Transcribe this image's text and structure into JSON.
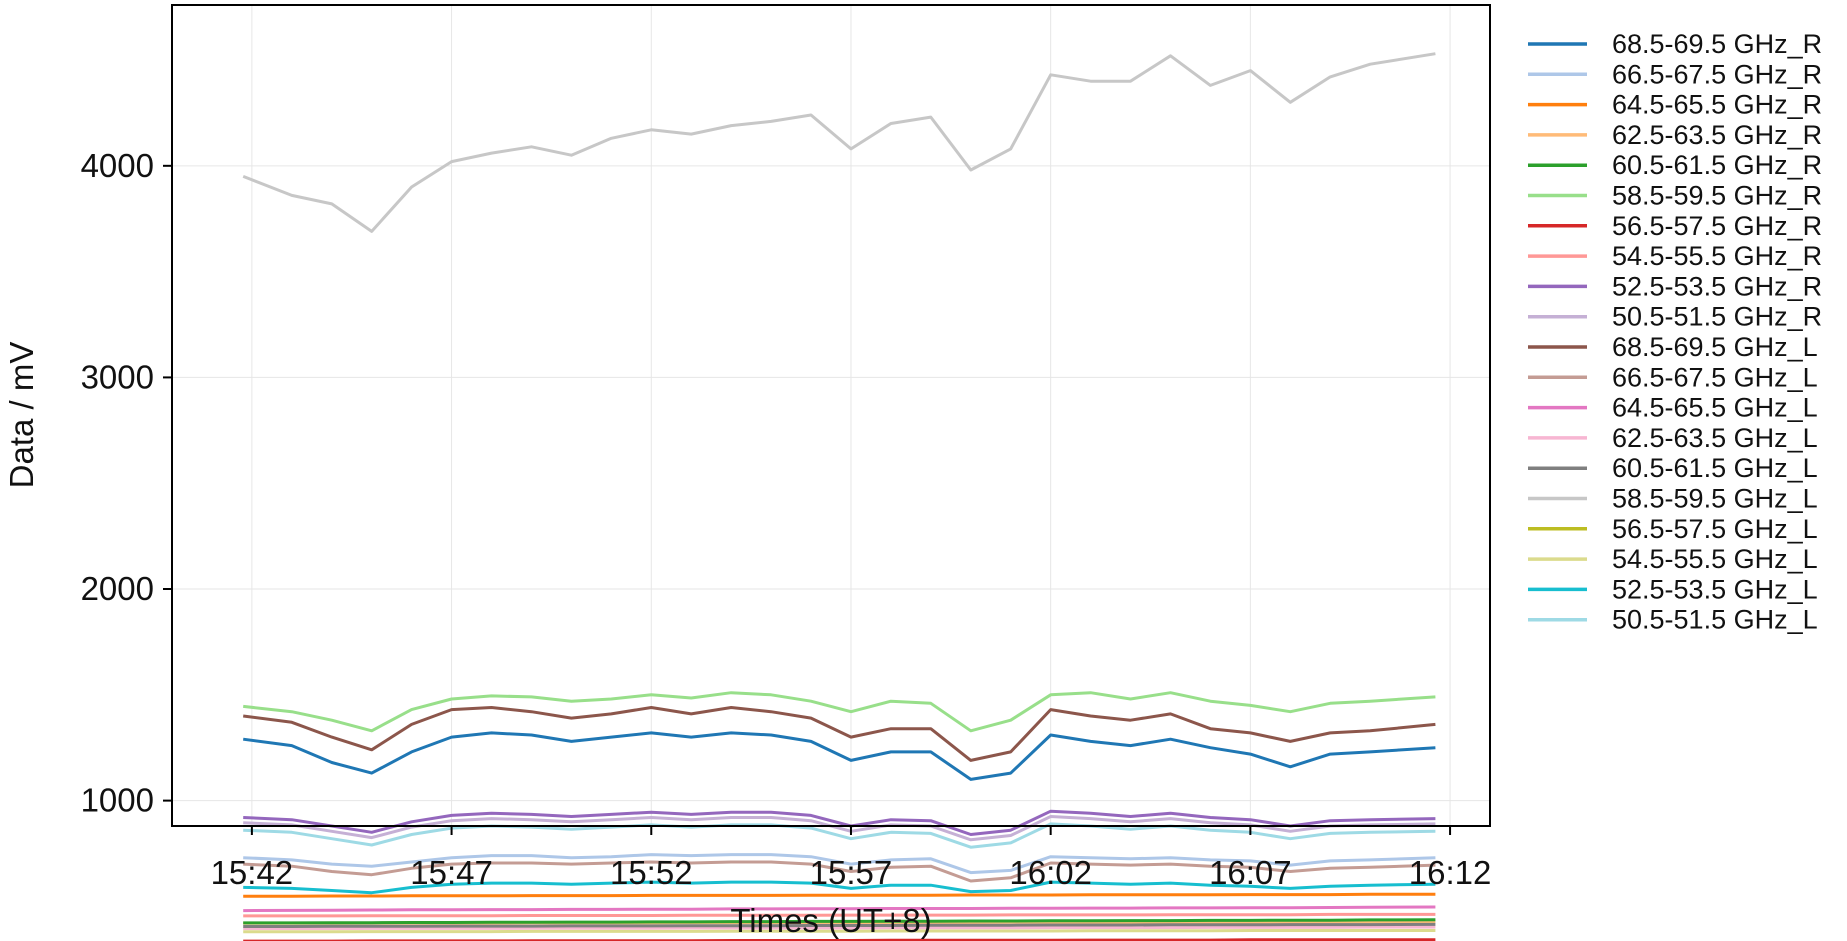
{
  "chart_data": {
    "type": "line",
    "title": "",
    "xlabel": "Times (UT+8)",
    "ylabel": "Data / mV",
    "grid": true,
    "legend_position": "right (outside plot)",
    "x_ticks": [
      "15:42",
      "15:47",
      "15:52",
      "15:57",
      "16:02",
      "16:07",
      "16:12"
    ],
    "y_ticks": [
      1000,
      2000,
      3000,
      4000
    ],
    "xlim": [
      "15:40",
      "16:13"
    ],
    "ylim": [
      880,
      4760
    ],
    "x": [
      "15:41:47",
      "15:43:00",
      "15:44:00",
      "15:45:00",
      "15:46:00",
      "15:47:00",
      "15:48:00",
      "15:49:00",
      "15:50:00",
      "15:51:00",
      "15:52:00",
      "15:53:00",
      "15:54:00",
      "15:55:00",
      "15:56:00",
      "15:57:00",
      "15:58:00",
      "15:59:00",
      "16:00:00",
      "16:01:00",
      "16:02:00",
      "16:03:00",
      "16:04:00",
      "16:05:00",
      "16:06:00",
      "16:07:00",
      "16:08:00",
      "16:09:00",
      "16:10:00",
      "16:11:38"
    ],
    "series": [
      {
        "name": "68.5-69.5 GHz_R",
        "color": "#1f77b4",
        "values": [
          1290,
          1260,
          1180,
          1130,
          1230,
          1300,
          1320,
          1310,
          1280,
          1300,
          1320,
          1300,
          1320,
          1310,
          1280,
          1190,
          1230,
          1230,
          1100,
          1130,
          1310,
          1280,
          1260,
          1290,
          1250,
          1220,
          1160,
          1220,
          1230,
          1250
        ]
      },
      {
        "name": "66.5-67.5 GHz_R",
        "color": "#aec7e8",
        "values": [
          730,
          720,
          700,
          690,
          710,
          730,
          740,
          740,
          730,
          735,
          745,
          740,
          745,
          745,
          735,
          700,
          720,
          725,
          660,
          670,
          735,
          730,
          725,
          730,
          720,
          715,
          695,
          715,
          720,
          730
        ]
      },
      {
        "name": "64.5-65.5 GHz_R",
        "color": "#ff7f0e",
        "values": [
          548,
          548,
          549,
          549,
          550,
          550,
          550,
          551,
          551,
          551,
          552,
          552,
          552,
          552,
          553,
          553,
          553,
          553,
          554,
          554,
          554,
          555,
          555,
          555,
          555,
          556,
          556,
          556,
          557,
          557
        ]
      },
      {
        "name": "62.5-63.5 GHz_R",
        "color": "#ffbb78",
        "values": [
          420,
          420,
          420,
          421,
          421,
          421,
          421,
          422,
          422,
          422,
          422,
          423,
          423,
          423,
          423,
          424,
          424,
          424,
          424,
          425,
          425,
          425,
          425,
          426,
          426,
          426,
          426,
          427,
          427,
          427
        ]
      },
      {
        "name": "60.5-61.5 GHz_R",
        "color": "#2ca02c",
        "values": [
          422,
          422,
          423,
          423,
          424,
          424,
          425,
          425,
          426,
          426,
          427,
          427,
          428,
          428,
          429,
          429,
          430,
          430,
          431,
          431,
          432,
          432,
          433,
          433,
          434,
          434,
          435,
          435,
          436,
          437
        ]
      },
      {
        "name": "58.5-59.5 GHz_R",
        "color": "#98df8a",
        "values": [
          1445,
          1420,
          1380,
          1330,
          1430,
          1480,
          1495,
          1490,
          1470,
          1480,
          1500,
          1485,
          1510,
          1500,
          1470,
          1420,
          1470,
          1460,
          1330,
          1380,
          1500,
          1510,
          1480,
          1510,
          1470,
          1450,
          1420,
          1460,
          1470,
          1490
        ]
      },
      {
        "name": "56.5-57.5 GHz_R",
        "color": "#d62728",
        "values": [
          336,
          336,
          336,
          337,
          337,
          337,
          337,
          338,
          338,
          338,
          338,
          338,
          339,
          339,
          339,
          339,
          340,
          340,
          340,
          340,
          340,
          341,
          341,
          341,
          341,
          342,
          342,
          342,
          342,
          342
        ]
      },
      {
        "name": "54.5-55.5 GHz_R",
        "color": "#ff9896",
        "values": [
          455,
          455,
          455,
          456,
          456,
          456,
          456,
          457,
          457,
          457,
          457,
          458,
          458,
          458,
          458,
          459,
          459,
          459,
          459,
          460,
          460,
          460,
          460,
          461,
          461,
          461,
          461,
          462,
          462,
          462
        ]
      },
      {
        "name": "52.5-53.5 GHz_R",
        "color": "#9467bd",
        "values": [
          920,
          910,
          880,
          850,
          900,
          930,
          940,
          935,
          925,
          935,
          945,
          935,
          945,
          945,
          930,
          880,
          910,
          905,
          840,
          860,
          950,
          940,
          925,
          940,
          920,
          910,
          880,
          905,
          910,
          915
        ]
      },
      {
        "name": "50.5-51.5 GHz_R",
        "color": "#c5b0d5",
        "values": [
          895,
          885,
          855,
          825,
          875,
          905,
          915,
          910,
          900,
          910,
          920,
          910,
          920,
          920,
          905,
          855,
          885,
          880,
          815,
          835,
          925,
          915,
          900,
          915,
          895,
          885,
          855,
          880,
          885,
          890
        ]
      },
      {
        "name": "68.5-69.5 GHz_L",
        "color": "#8c564b",
        "values": [
          1400,
          1370,
          1300,
          1240,
          1360,
          1430,
          1440,
          1420,
          1390,
          1410,
          1440,
          1410,
          1440,
          1420,
          1390,
          1300,
          1340,
          1340,
          1190,
          1230,
          1430,
          1400,
          1380,
          1410,
          1340,
          1320,
          1280,
          1320,
          1330,
          1360
        ]
      },
      {
        "name": "66.5-67.5 GHz_L",
        "color": "#c49c94",
        "values": [
          700,
          690,
          665,
          650,
          680,
          700,
          705,
          705,
          700,
          705,
          710,
          705,
          710,
          710,
          700,
          665,
          685,
          690,
          620,
          635,
          705,
          700,
          695,
          700,
          690,
          685,
          665,
          680,
          685,
          695
        ]
      },
      {
        "name": "64.5-65.5 GHz_L",
        "color": "#e377c2",
        "values": [
          480,
          481,
          482,
          483,
          484,
          484,
          485,
          485,
          486,
          486,
          487,
          487,
          488,
          488,
          489,
          489,
          490,
          490,
          490,
          491,
          491,
          492,
          492,
          493,
          493,
          494,
          494,
          495,
          496,
          497
        ]
      },
      {
        "name": "62.5-63.5 GHz_L",
        "color": "#f7b6d2",
        "values": [
          395,
          395,
          395,
          396,
          396,
          396,
          396,
          397,
          397,
          397,
          397,
          398,
          398,
          398,
          398,
          398,
          399,
          399,
          399,
          399,
          400,
          400,
          400,
          400,
          401,
          401,
          401,
          401,
          402,
          402
        ]
      },
      {
        "name": "60.5-61.5 GHz_L",
        "color": "#7f7f7f",
        "values": [
          405,
          405,
          406,
          406,
          406,
          407,
          407,
          407,
          408,
          408,
          408,
          409,
          409,
          409,
          410,
          410,
          410,
          411,
          411,
          411,
          412,
          412,
          412,
          413,
          413,
          413,
          414,
          414,
          414,
          415
        ]
      },
      {
        "name": "58.5-59.5 GHz_L",
        "color": "#c7c7c7",
        "values": [
          3950,
          3860,
          3820,
          3690,
          3900,
          4020,
          4060,
          4090,
          4050,
          4130,
          4170,
          4150,
          4190,
          4210,
          4240,
          4080,
          4200,
          4230,
          3980,
          4080,
          4430,
          4400,
          4400,
          4520,
          4380,
          4450,
          4300,
          4420,
          4480,
          4530
        ]
      },
      {
        "name": "56.5-57.5 GHz_L",
        "color": "#bcbd22",
        "values": [
          322,
          322,
          322,
          323,
          323,
          323,
          323,
          323,
          324,
          324,
          324,
          324,
          324,
          325,
          325,
          325,
          325,
          325,
          326,
          326,
          326,
          326,
          326,
          327,
          327,
          327,
          327,
          327,
          328,
          328
        ]
      },
      {
        "name": "54.5-55.5 GHz_L",
        "color": "#dbdb8d",
        "values": [
          380,
          380,
          380,
          381,
          381,
          381,
          381,
          382,
          382,
          382,
          382,
          382,
          383,
          383,
          383,
          383,
          384,
          384,
          384,
          384,
          384,
          385,
          385,
          385,
          385,
          386,
          386,
          386,
          386,
          386
        ]
      },
      {
        "name": "52.5-53.5 GHz_L",
        "color": "#17becf",
        "values": [
          590,
          585,
          575,
          565,
          590,
          605,
          610,
          610,
          605,
          610,
          615,
          610,
          615,
          615,
          610,
          585,
          600,
          600,
          570,
          575,
          615,
          610,
          605,
          610,
          600,
          595,
          585,
          595,
          600,
          605
        ]
      },
      {
        "name": "50.5-51.5 GHz_L",
        "color": "#9edae5",
        "values": [
          860,
          850,
          820,
          790,
          840,
          870,
          880,
          875,
          865,
          875,
          885,
          875,
          885,
          885,
          870,
          820,
          850,
          845,
          780,
          800,
          890,
          880,
          865,
          880,
          860,
          850,
          820,
          845,
          850,
          855
        ]
      }
    ]
  }
}
